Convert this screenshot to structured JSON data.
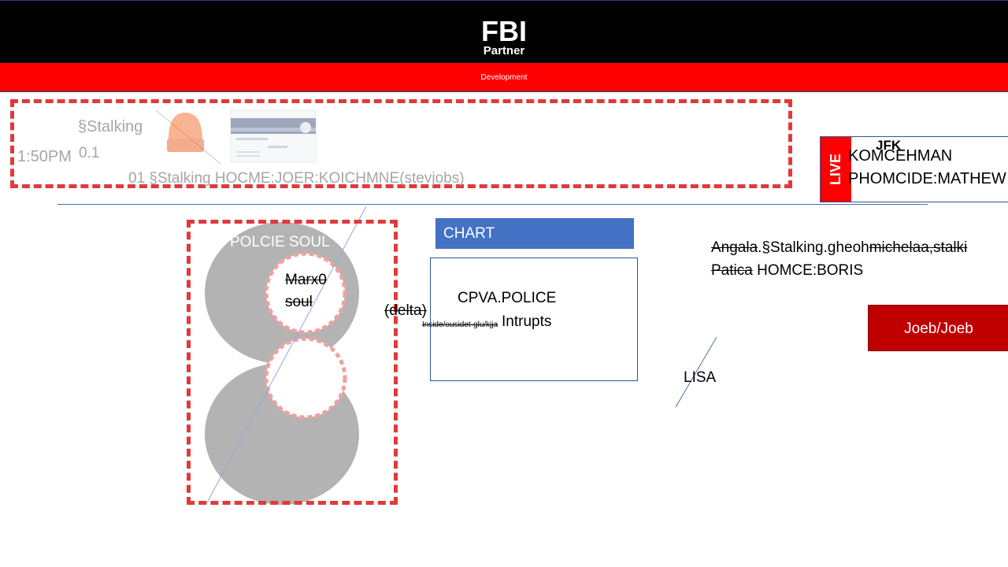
{
  "header": {
    "title": "FBI",
    "subtitle": "Partner"
  },
  "banner": {
    "label": "Development"
  },
  "top_panel": {
    "stalking": "§Stalking",
    "time": "1:50PM",
    "version": "0.1",
    "marquee": "01 §Stalking HOCME:JOER:KOICHMNE(stevjobs)"
  },
  "left_panel": {
    "police_soul": "POLCIE SOUL",
    "marx_line1": "Marx0",
    "marx_line2": "soul"
  },
  "delta": "(delta)",
  "inside_note": "Inside/ousidet-glu/kjja",
  "chart": {
    "button_label": "CHART",
    "line1": "CPVA.POLICE",
    "line2": "Intrupts"
  },
  "right_text": {
    "angala": "Angala",
    "stalk_mid": ".§Stalking.gheoh",
    "michelaa": "michelaa,stalki",
    "patica": "Patica",
    "homce": " HOMCE:BORIS"
  },
  "joeb_button": "Joeb/Joeb",
  "lisa": "LISA",
  "live_panel": {
    "badge": "LIVE",
    "jfk": "JFK",
    "line1": "KOMCEHMAN",
    "line2": "PHOMCIDE:MATHEW"
  },
  "colors": {
    "header": "#000000",
    "banner": "#ff0000",
    "accent_blue": "#4472c4",
    "button_red": "#c00000",
    "dashed_border": "#e03a3a"
  }
}
